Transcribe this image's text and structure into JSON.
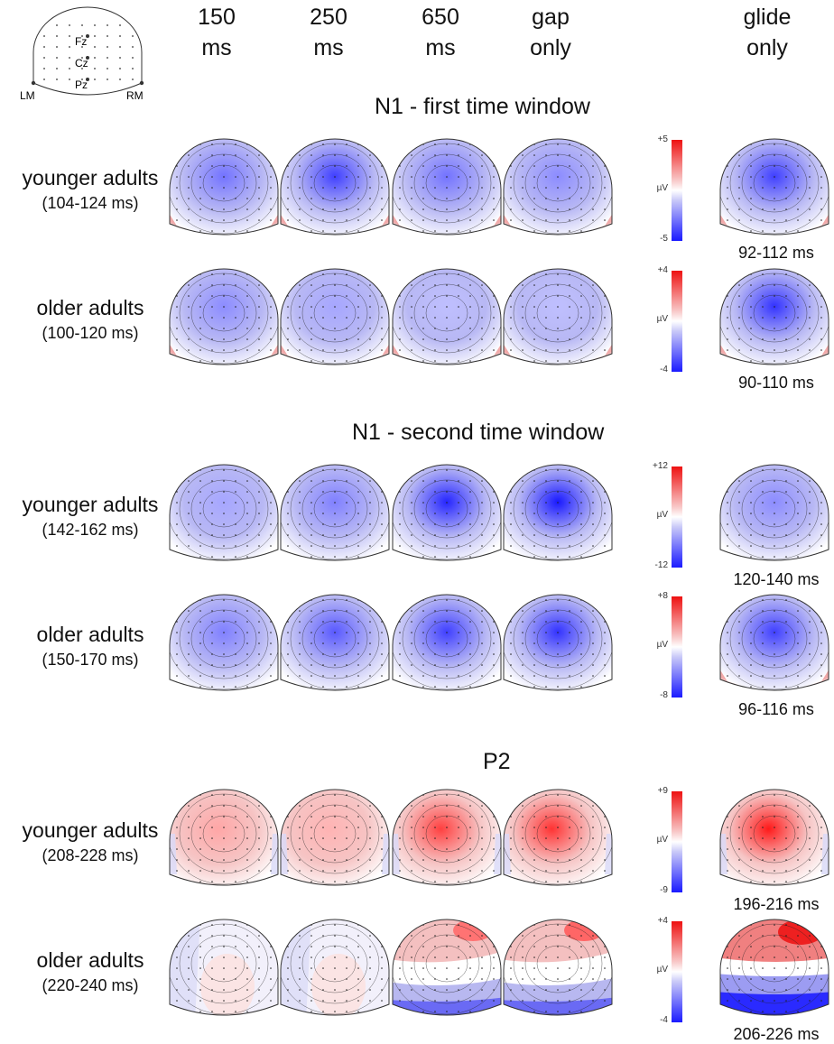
{
  "montage": {
    "electrodes": [
      "Fz",
      "Cz",
      "Pz"
    ],
    "mastoids": [
      "LM",
      "RM"
    ]
  },
  "columns": [
    {
      "line1": "150",
      "line2": "ms"
    },
    {
      "line1": "250",
      "line2": "ms"
    },
    {
      "line1": "650",
      "line2": "ms"
    },
    {
      "line1": "gap",
      "line2": "only"
    },
    {
      "line1": "glide",
      "line2": "only"
    }
  ],
  "colors": {
    "negative": "#1a1aff",
    "neutral": "#ffffff",
    "positive": "#ee1111"
  },
  "unit": "µV",
  "sections": [
    {
      "title": "N1 - first time window",
      "rows": [
        {
          "group": "younger adults",
          "window": "(104-124 ms)",
          "scale_max": "+5",
          "scale_min": "-5",
          "glide_window": "92-112 ms",
          "maps": [
            {
              "type": "neg",
              "level": 0.55
            },
            {
              "type": "neg",
              "level": 0.75
            },
            {
              "type": "neg",
              "level": 0.55
            },
            {
              "type": "neg",
              "level": 0.45
            },
            {
              "type": "neg",
              "level": 0.75
            }
          ]
        },
        {
          "group": "older adults",
          "window": "(100-120 ms)",
          "scale_max": "+4",
          "scale_min": "-4",
          "glide_window": "90-110 ms",
          "maps": [
            {
              "type": "neg",
              "level": 0.45
            },
            {
              "type": "neg",
              "level": 0.35
            },
            {
              "type": "neg",
              "level": 0.25
            },
            {
              "type": "neg",
              "level": 0.25
            },
            {
              "type": "neg",
              "level": 0.8
            }
          ]
        }
      ]
    },
    {
      "title": "N1 - second time window",
      "rows": [
        {
          "group": "younger adults",
          "window": "(142-162 ms)",
          "scale_max": "+12",
          "scale_min": "-12",
          "glide_window": "120-140 ms",
          "maps": [
            {
              "type": "neg2",
              "level": 0.35
            },
            {
              "type": "neg2",
              "level": 0.5
            },
            {
              "type": "neg2",
              "level": 0.85
            },
            {
              "type": "neg2",
              "level": 0.9
            },
            {
              "type": "neg2",
              "level": 0.45
            }
          ]
        },
        {
          "group": "older adults",
          "window": "(150-170 ms)",
          "scale_max": "+8",
          "scale_min": "-8",
          "glide_window": "96-116 ms",
          "maps": [
            {
              "type": "neg2",
              "level": 0.5
            },
            {
              "type": "neg2",
              "level": 0.65
            },
            {
              "type": "neg2",
              "level": 0.75
            },
            {
              "type": "neg2",
              "level": 0.8
            },
            {
              "type": "neg",
              "level": 0.75
            }
          ]
        }
      ]
    },
    {
      "title": "P2",
      "rows": [
        {
          "group": "younger adults",
          "window": "(208-228 ms)",
          "scale_max": "+9",
          "scale_min": "-9",
          "glide_window": "196-216 ms",
          "maps": [
            {
              "type": "pos",
              "level": 0.35
            },
            {
              "type": "pos",
              "level": 0.3
            },
            {
              "type": "pos",
              "level": 0.75
            },
            {
              "type": "pos",
              "level": 0.8
            },
            {
              "type": "pos",
              "level": 0.9
            }
          ]
        },
        {
          "group": "older adults",
          "window": "(220-240 ms)",
          "scale_max": "+4",
          "scale_min": "-4",
          "glide_window": "206-226 ms",
          "maps": [
            {
              "type": "mix",
              "level": 0.2
            },
            {
              "type": "mix",
              "level": 0.2
            },
            {
              "type": "pos2",
              "level": 0.55
            },
            {
              "type": "pos2",
              "level": 0.6
            },
            {
              "type": "pos3",
              "level": 0.9
            }
          ]
        }
      ]
    }
  ]
}
